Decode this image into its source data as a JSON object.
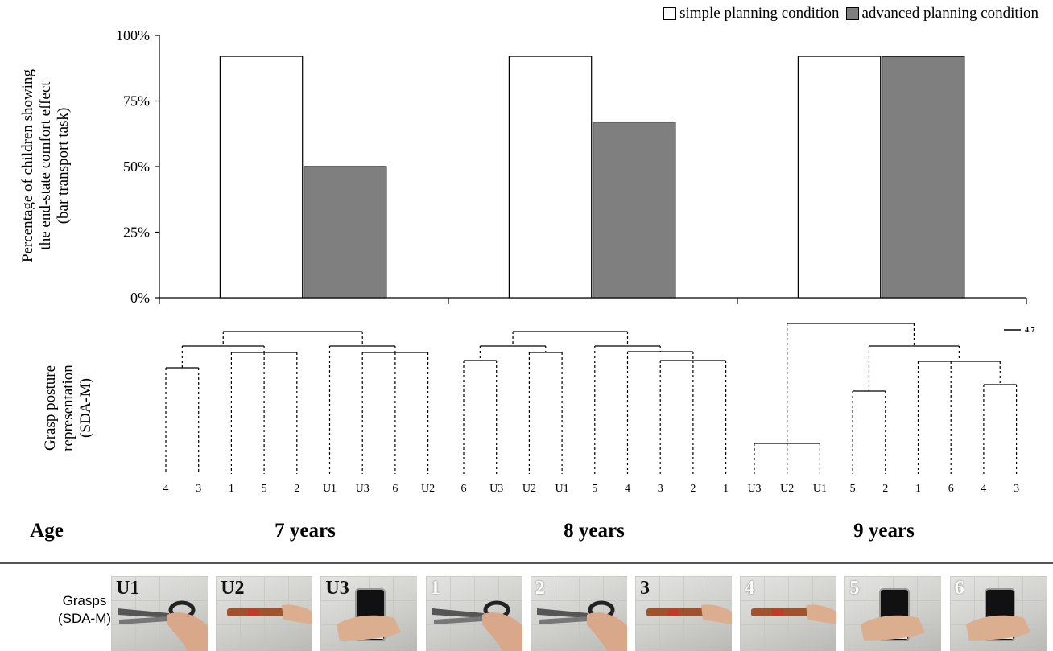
{
  "legend": {
    "simple": {
      "label": "simple planning condition",
      "color": "#ffffff"
    },
    "advanced": {
      "label": "advanced planning condition",
      "color": "#7f7f7f"
    }
  },
  "chart_data": [
    {
      "type": "bar",
      "title": "",
      "ylabel": "Percentage of children showing the end-state comfort effect (bar transport task)",
      "ylabel_lines": [
        "Percentage of children showing",
        "the end-state comfort effect",
        "(bar transport task)"
      ],
      "categories": [
        "7 years",
        "8 years",
        "9 years"
      ],
      "ylim": [
        0,
        100
      ],
      "yticks": [
        0,
        25,
        50,
        75,
        100
      ],
      "yticklabels": [
        "0%",
        "25%",
        "50%",
        "75%",
        "100%"
      ],
      "series": [
        {
          "name": "simple planning condition",
          "values": [
            92,
            92,
            92
          ]
        },
        {
          "name": "advanced planning condition",
          "values": [
            50,
            67,
            92
          ]
        }
      ],
      "grid": false,
      "legend_position": "top-right"
    },
    {
      "type": "dendrogram",
      "ylabel": "Grasp posture representation (SDA-M)",
      "ylabel_lines": [
        "Grasp posture",
        "representation",
        "(SDA-M)"
      ],
      "scale_label": "4.7",
      "groups": [
        {
          "age": "7 years",
          "leaves": [
            "4",
            "3",
            "1",
            "5",
            "2",
            "U1",
            "U3",
            "6",
            "U2"
          ]
        },
        {
          "age": "8 years",
          "leaves": [
            "6",
            "U3",
            "U2",
            "U1",
            "5",
            "4",
            "3",
            "2",
            "1"
          ]
        },
        {
          "age": "9 years",
          "leaves": [
            "U3",
            "U2",
            "U1",
            "5",
            "2",
            "1",
            "6",
            "4",
            "3"
          ]
        }
      ]
    }
  ],
  "age_header": "Age",
  "ages": [
    "7 years",
    "8 years",
    "9 years"
  ],
  "grasps": {
    "label_lines": [
      "Grasps",
      "(SDA-M)"
    ],
    "photos": [
      {
        "label": "U1",
        "object": "scissors",
        "label_style": "dark"
      },
      {
        "label": "U2",
        "object": "hammer",
        "label_style": "dark"
      },
      {
        "label": "U3",
        "object": "cup",
        "label_style": "dark"
      },
      {
        "label": "1",
        "object": "scissors",
        "label_style": "light"
      },
      {
        "label": "2",
        "object": "scissors",
        "label_style": "light"
      },
      {
        "label": "3",
        "object": "hammer",
        "label_style": "dark"
      },
      {
        "label": "4",
        "object": "hammer",
        "label_style": "light"
      },
      {
        "label": "5",
        "object": "cup",
        "label_style": "light"
      },
      {
        "label": "6",
        "object": "cup",
        "label_style": "light"
      }
    ]
  }
}
